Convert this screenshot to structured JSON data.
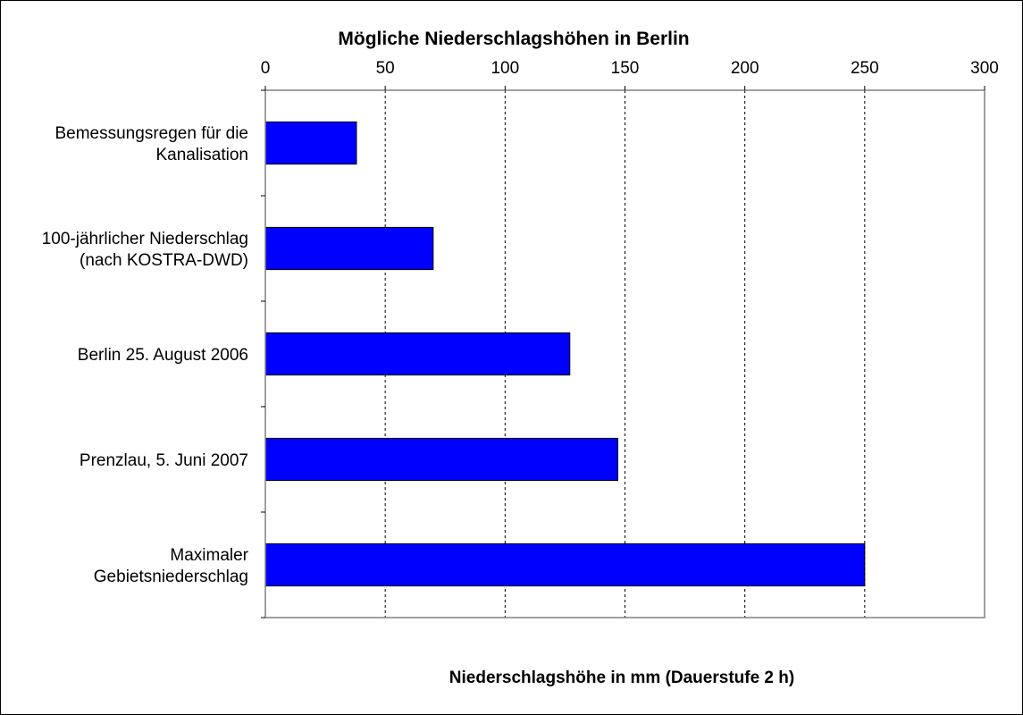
{
  "chart_data": {
    "type": "bar",
    "orientation": "horizontal",
    "title": "Mögliche  Niederschlagshöhen in Berlin",
    "xlabel": "Niederschlagshöhe  in mm (Dauerstufe  2 h)",
    "ylabel": "",
    "xlim": [
      0,
      300
    ],
    "x_ticks": [
      "0",
      "50",
      "100",
      "150",
      "200",
      "250",
      "300"
    ],
    "x_axis_position": "top",
    "grid": "vertical-dashed",
    "legend": "none",
    "categories": [
      [
        "Bemessungsregen für die",
        "Kanalisation"
      ],
      [
        "100-jährlicher Niederschlag",
        "(nach KOSTRA-DWD)"
      ],
      [
        "Berlin 25. August 2006"
      ],
      [
        "Prenzlau, 5. Juni 2007"
      ],
      [
        "Maximaler",
        "Gebietsniederschlag"
      ]
    ],
    "values": [
      38,
      70,
      127,
      147,
      250
    ],
    "bar_color": "#0000FF"
  }
}
